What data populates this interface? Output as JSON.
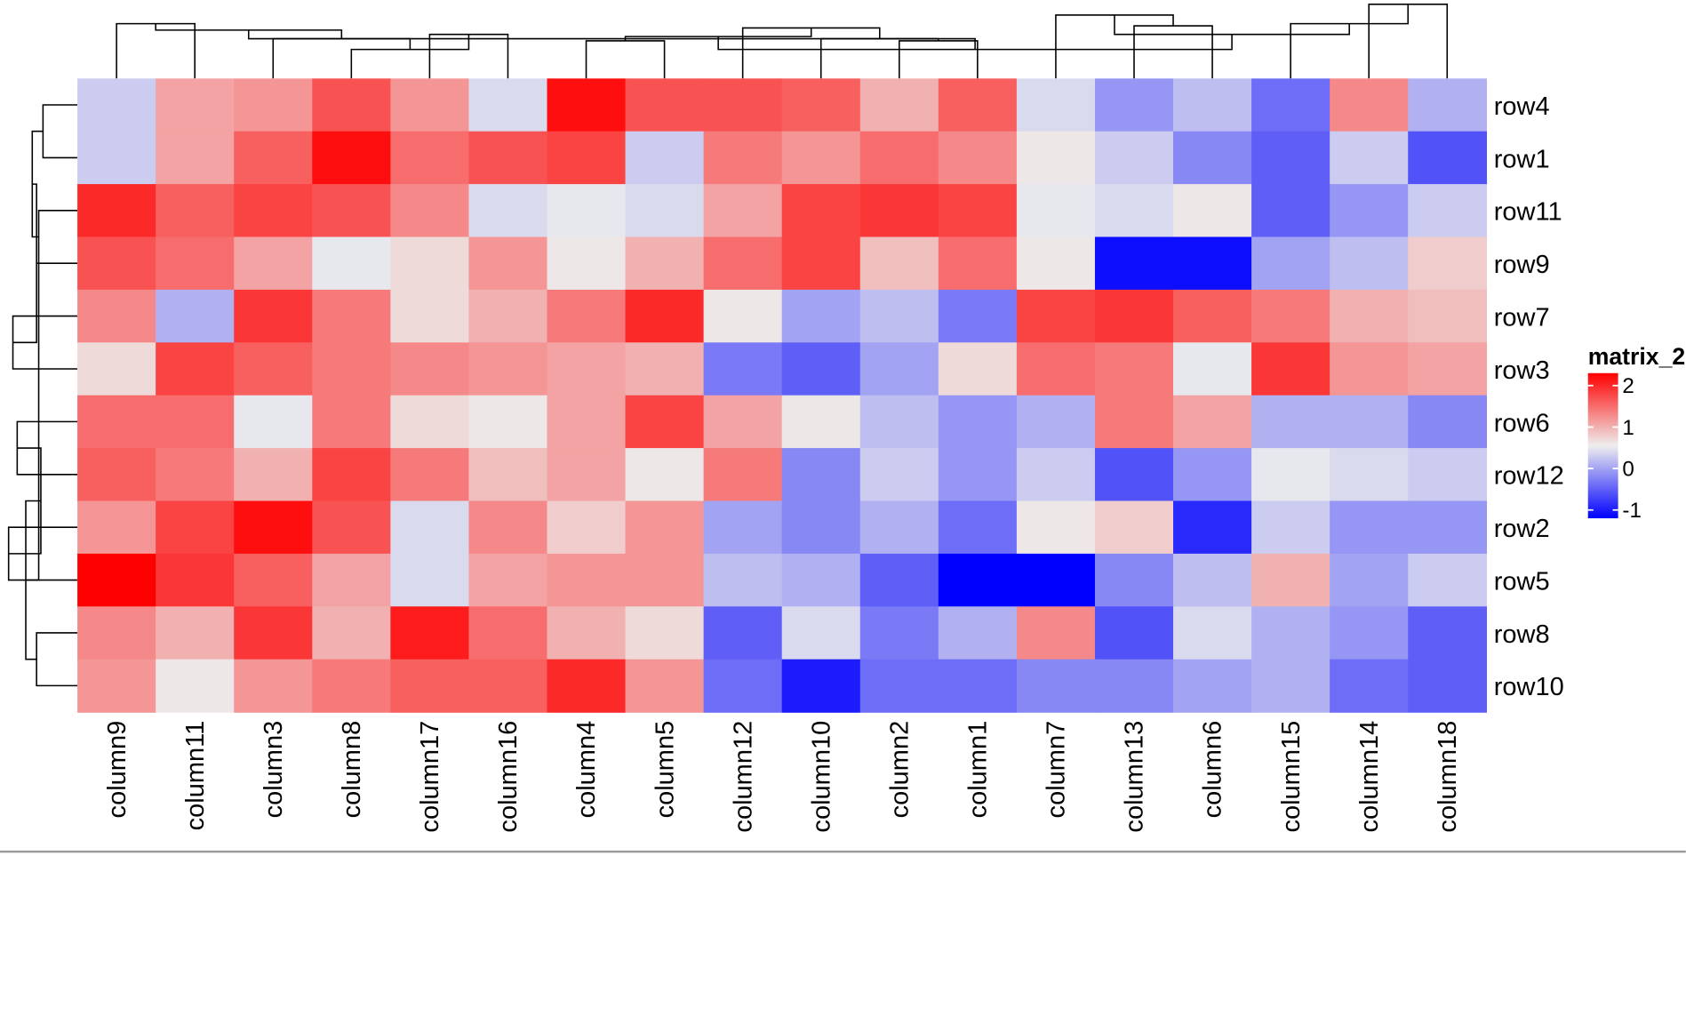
{
  "chart_data": {
    "type": "heatmap",
    "columns": [
      "column9",
      "column11",
      "column3",
      "column8",
      "column17",
      "column16",
      "column4",
      "column5",
      "column12",
      "column10",
      "column2",
      "column1",
      "column7",
      "column13",
      "column6",
      "column15",
      "column14",
      "column18"
    ],
    "rows": [
      "row4",
      "row1",
      "row11",
      "row9",
      "row7",
      "row3",
      "row6",
      "row12",
      "row2",
      "row5",
      "row8",
      "row10"
    ],
    "values": [
      [
        0.3,
        1.1,
        1.2,
        1.7,
        1.2,
        0.4,
        2.2,
        1.7,
        1.7,
        1.6,
        1.0,
        1.6,
        0.4,
        -0.1,
        0.2,
        -0.4,
        1.3,
        0.1
      ],
      [
        0.3,
        1.1,
        1.6,
        2.2,
        1.5,
        1.7,
        1.8,
        0.3,
        1.4,
        1.2,
        1.5,
        1.3,
        0.6,
        0.3,
        -0.2,
        -0.5,
        0.3,
        -0.6
      ],
      [
        2.0,
        1.6,
        1.8,
        1.7,
        1.3,
        0.4,
        0.5,
        0.4,
        1.1,
        1.8,
        1.9,
        1.8,
        0.5,
        0.4,
        0.6,
        -0.5,
        -0.1,
        0.3
      ],
      [
        1.7,
        1.5,
        1.1,
        0.5,
        0.7,
        1.2,
        0.6,
        1.0,
        1.5,
        1.8,
        0.9,
        1.5,
        0.6,
        -1.1,
        -1.1,
        0.0,
        0.2,
        0.8
      ],
      [
        1.3,
        0.1,
        1.9,
        1.4,
        0.7,
        1.0,
        1.4,
        2.0,
        0.6,
        0.0,
        0.2,
        -0.3,
        1.8,
        1.9,
        1.6,
        1.4,
        1.0,
        0.9
      ],
      [
        0.7,
        1.8,
        1.6,
        1.4,
        1.3,
        1.2,
        1.1,
        1.0,
        -0.3,
        -0.5,
        0.0,
        0.7,
        1.5,
        1.4,
        0.5,
        1.9,
        1.2,
        1.1
      ],
      [
        1.5,
        1.5,
        0.5,
        1.4,
        0.7,
        0.6,
        1.1,
        1.8,
        1.1,
        0.6,
        0.2,
        -0.1,
        0.1,
        1.4,
        1.1,
        0.1,
        0.1,
        -0.2
      ],
      [
        1.6,
        1.4,
        1.0,
        1.8,
        1.4,
        0.9,
        1.1,
        0.6,
        1.4,
        -0.2,
        0.3,
        -0.1,
        0.3,
        -0.6,
        -0.1,
        0.5,
        0.4,
        0.3
      ],
      [
        1.2,
        1.8,
        2.2,
        1.7,
        0.4,
        1.3,
        0.8,
        1.2,
        0.0,
        -0.2,
        0.1,
        -0.4,
        0.6,
        0.8,
        -0.9,
        0.3,
        -0.1,
        -0.1
      ],
      [
        2.3,
        1.9,
        1.6,
        1.1,
        0.4,
        1.1,
        1.2,
        1.2,
        0.2,
        0.1,
        -0.5,
        -1.3,
        -1.3,
        -0.2,
        0.2,
        1.0,
        0.0,
        0.3
      ],
      [
        1.3,
        1.0,
        1.9,
        1.0,
        2.1,
        1.5,
        1.0,
        0.7,
        -0.5,
        0.4,
        -0.3,
        0.1,
        1.3,
        -0.6,
        0.4,
        0.1,
        -0.1,
        -0.5
      ],
      [
        1.2,
        0.6,
        1.2,
        1.4,
        1.6,
        1.6,
        2.0,
        1.2,
        -0.4,
        -1.0,
        -0.4,
        -0.4,
        -0.2,
        -0.2,
        0.0,
        0.1,
        -0.4,
        -0.5
      ]
    ],
    "legend": {
      "title": "matrix_2",
      "ticks": [
        2,
        1,
        0,
        -1
      ],
      "colors": {
        "high": "#ff0000",
        "mid": "#eeeeee",
        "low": "#0000ff"
      },
      "range": [
        -1.2,
        2.3
      ],
      "placement": "right"
    },
    "row_dendrogram": "left",
    "column_dendrogram": "top"
  }
}
